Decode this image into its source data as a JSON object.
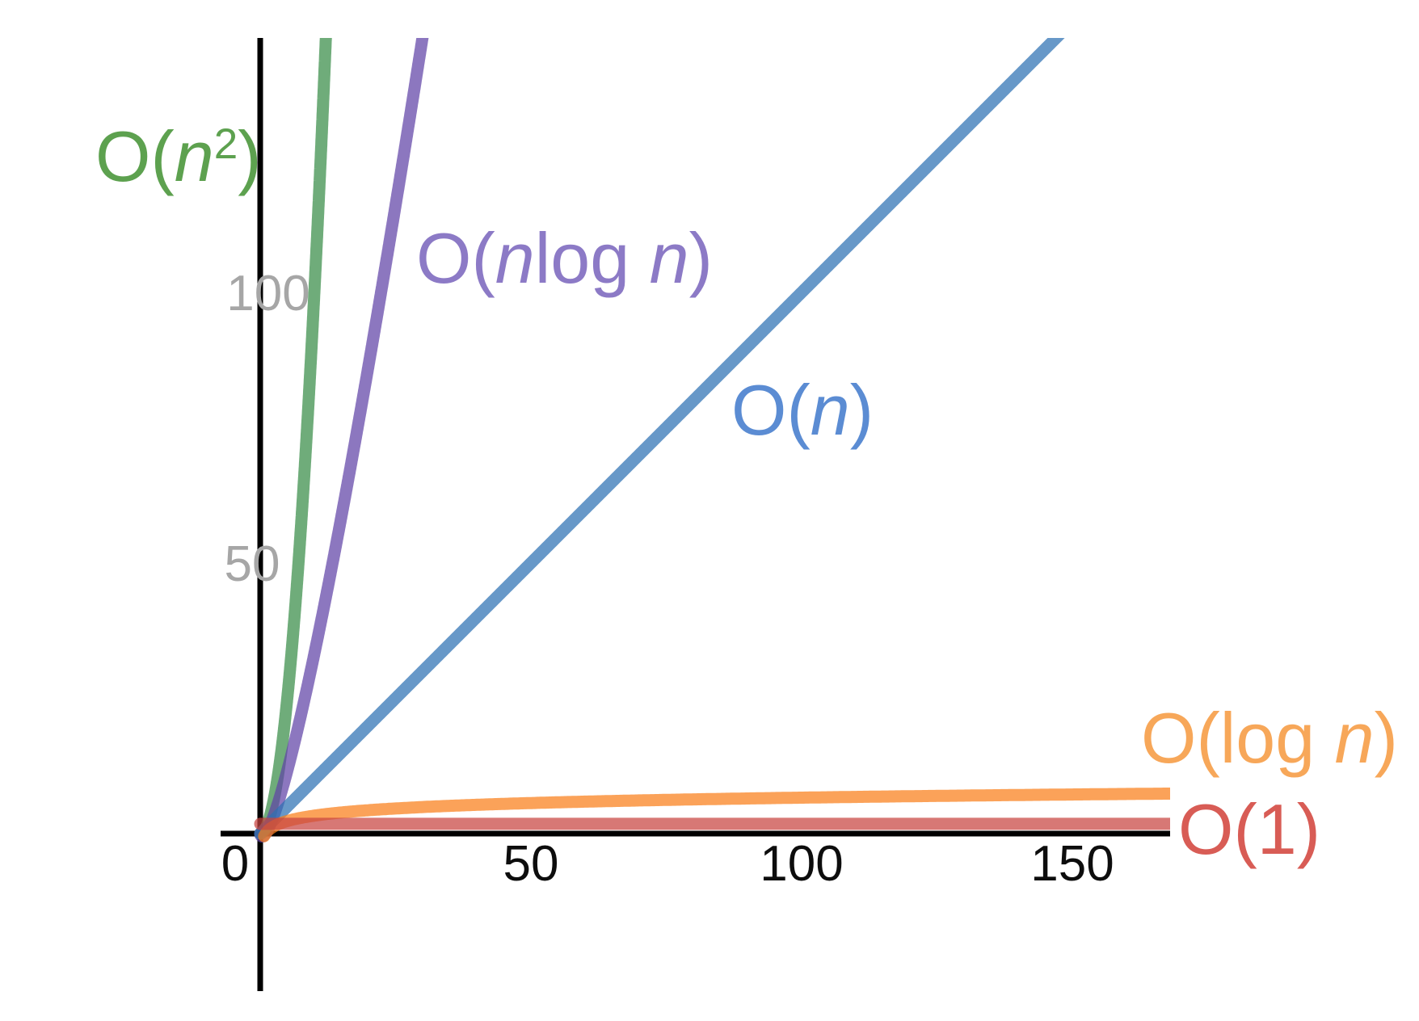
{
  "title": "",
  "background_color": "#ffffff",
  "chart_data": {
    "type": "line",
    "title": "",
    "xlabel": "",
    "ylabel": "",
    "grid": false,
    "legend_position": "none (labels drawn inline next to curves)",
    "xlim": [
      -7.3,
      168.1
    ],
    "ylim": [
      -29.1,
      147.0
    ],
    "axis_color": "#000000",
    "x_tick_label_color": "#0d0d0d",
    "y_tick_label_color": "#a6a6a6",
    "x_ticks": [
      {
        "value": 0,
        "label": "0"
      },
      {
        "value": 50,
        "label": "50"
      },
      {
        "value": 100,
        "label": "100"
      },
      {
        "value": 150,
        "label": "150"
      }
    ],
    "y_ticks": [
      {
        "value": 50,
        "label": "50"
      },
      {
        "value": 100,
        "label": "100"
      }
    ],
    "series": [
      {
        "id": "quadratic",
        "label": "O(n²)",
        "label_parts": [
          {
            "t": "O("
          },
          {
            "t": "n",
            "italic": true
          },
          {
            "t": "2",
            "sup": true
          },
          {
            "t": ")"
          }
        ],
        "function": "y = n^2",
        "domain": [
          0,
          12.6
        ],
        "color_rgba": "rgba(56,140,70,0.72)",
        "label_color": "#5da14f",
        "samples": [
          {
            "n": 0,
            "y": 0
          },
          {
            "n": 3,
            "y": 9
          },
          {
            "n": 6,
            "y": 36
          },
          {
            "n": 9,
            "y": 81
          },
          {
            "n": 12.1,
            "y": 146.4
          }
        ]
      },
      {
        "id": "nlogn",
        "label": "O(nlog n)",
        "label_parts": [
          {
            "t": "O("
          },
          {
            "t": "n",
            "italic": true
          },
          {
            "t": "log "
          },
          {
            "t": "n",
            "italic": true
          },
          {
            "t": ")"
          }
        ],
        "function": "y = n·log2(n)",
        "domain": [
          0.001,
          30
        ],
        "color_rgba": "rgba(96,66,166,0.72)",
        "label_color": "#8c7ac6",
        "samples": [
          {
            "n": 0,
            "y": 0
          },
          {
            "n": 5,
            "y": 11.6
          },
          {
            "n": 10,
            "y": 33.2
          },
          {
            "n": 20,
            "y": 86.4
          },
          {
            "n": 29.4,
            "y": 143.4
          }
        ]
      },
      {
        "id": "linear",
        "label": "O(n)",
        "label_parts": [
          {
            "t": "O("
          },
          {
            "t": "n",
            "italic": true
          },
          {
            "t": ")"
          }
        ],
        "function": "y = n",
        "domain": [
          0,
          149
        ],
        "color_rgba": "rgba(45,112,179,0.72)",
        "label_color": "#5b8cd3",
        "samples": [
          {
            "n": 0,
            "y": 0
          },
          {
            "n": 50,
            "y": 50
          },
          {
            "n": 100,
            "y": 100
          },
          {
            "n": 147,
            "y": 147
          }
        ]
      },
      {
        "id": "logn",
        "label": "O(log n)",
        "label_parts": [
          {
            "t": "O(log "
          },
          {
            "t": "n",
            "italic": true
          },
          {
            "t": ")"
          }
        ],
        "function": "y = log2(n)",
        "domain": [
          0.72,
          168.2
        ],
        "color_rgba": "rgba(250,126,25,0.72)",
        "label_color": "#f7a759",
        "samples": [
          {
            "n": 1,
            "y": 0
          },
          {
            "n": 8,
            "y": 3
          },
          {
            "n": 32,
            "y": 5
          },
          {
            "n": 64,
            "y": 6
          },
          {
            "n": 128,
            "y": 7
          },
          {
            "n": 168,
            "y": 7.4
          }
        ]
      },
      {
        "id": "constant",
        "label": "O(1)",
        "label_parts": [
          {
            "t": "O(1)"
          }
        ],
        "function": "y = c (constant)",
        "value": 1.8,
        "domain": [
          0,
          168.2
        ],
        "color_rgba": "rgba(199,68,64,0.72)",
        "label_color": "#d85c55",
        "samples": [
          {
            "n": 0,
            "y": 1.8
          },
          {
            "n": 168,
            "y": 1.8
          }
        ]
      }
    ]
  }
}
